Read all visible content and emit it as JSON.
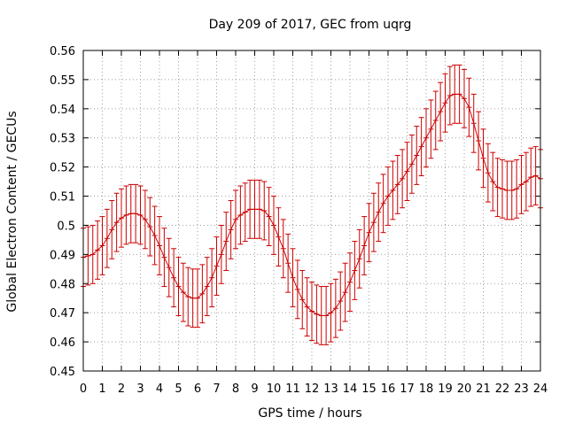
{
  "chart_data": {
    "type": "line",
    "title": "Day 209 of 2017, GEC from uqrg",
    "xlabel": "GPS time / hours",
    "ylabel": "Global Electron Content / GECUs",
    "xlim": [
      0,
      24
    ],
    "ylim": [
      0.45,
      0.56
    ],
    "xticks": [
      "0",
      "1",
      "2",
      "3",
      "4",
      "5",
      "6",
      "7",
      "8",
      "9",
      "10",
      "11",
      "12",
      "13",
      "14",
      "15",
      "16",
      "17",
      "18",
      "19",
      "20",
      "21",
      "22",
      "23",
      "24"
    ],
    "yticks": [
      "0.45",
      "0.46",
      "0.47",
      "0.48",
      "0.49",
      "0.5",
      "0.51",
      "0.52",
      "0.53",
      "0.54",
      "0.55",
      "0.56"
    ],
    "grid": true,
    "color": "#cc0000",
    "error_bar": 0.01,
    "series": [
      {
        "x": [
          0,
          0.25,
          0.5,
          0.75,
          1,
          1.25,
          1.5,
          1.75,
          2,
          2.25,
          2.5,
          2.75,
          3,
          3.25,
          3.5,
          3.75,
          4,
          4.25,
          4.5,
          4.75,
          5,
          5.25,
          5.5,
          5.75,
          6,
          6.25,
          6.5,
          6.75,
          7,
          7.25,
          7.5,
          7.75,
          8,
          8.25,
          8.5,
          8.75,
          9,
          9.25,
          9.5,
          9.75,
          10,
          10.25,
          10.5,
          10.75,
          11,
          11.25,
          11.5,
          11.75,
          12,
          12.25,
          12.5,
          12.75,
          13,
          13.25,
          13.5,
          13.75,
          14,
          14.25,
          14.5,
          14.75,
          15,
          15.25,
          15.5,
          15.75,
          16,
          16.25,
          16.5,
          16.75,
          17,
          17.25,
          17.5,
          17.75,
          18,
          18.25,
          18.5,
          18.75,
          19,
          19.25,
          19.5,
          19.75,
          20,
          20.25,
          20.5,
          20.75,
          21,
          21.25,
          21.5,
          21.75,
          22,
          22.25,
          22.5,
          22.75,
          23,
          23.25,
          23.5,
          23.75,
          24
        ],
        "y": [
          0.489,
          0.4895,
          0.49,
          0.4915,
          0.493,
          0.4955,
          0.4985,
          0.501,
          0.5025,
          0.5035,
          0.504,
          0.504,
          0.5035,
          0.502,
          0.4995,
          0.4965,
          0.493,
          0.489,
          0.4855,
          0.482,
          0.479,
          0.477,
          0.4755,
          0.475,
          0.475,
          0.4765,
          0.479,
          0.482,
          0.486,
          0.49,
          0.4945,
          0.4985,
          0.502,
          0.5035,
          0.5045,
          0.5055,
          0.5055,
          0.5055,
          0.505,
          0.503,
          0.5,
          0.496,
          0.492,
          0.487,
          0.482,
          0.478,
          0.4745,
          0.472,
          0.4705,
          0.4695,
          0.469,
          0.469,
          0.47,
          0.4715,
          0.474,
          0.477,
          0.4805,
          0.4845,
          0.4885,
          0.493,
          0.4975,
          0.501,
          0.5045,
          0.5075,
          0.51,
          0.512,
          0.514,
          0.516,
          0.5185,
          0.521,
          0.524,
          0.527,
          0.53,
          0.533,
          0.536,
          0.539,
          0.542,
          0.5445,
          0.545,
          0.545,
          0.5435,
          0.5405,
          0.535,
          0.529,
          0.523,
          0.518,
          0.515,
          0.513,
          0.5125,
          0.512,
          0.512,
          0.5125,
          0.514,
          0.515,
          0.5165,
          0.517,
          0.516
        ]
      }
    ]
  }
}
